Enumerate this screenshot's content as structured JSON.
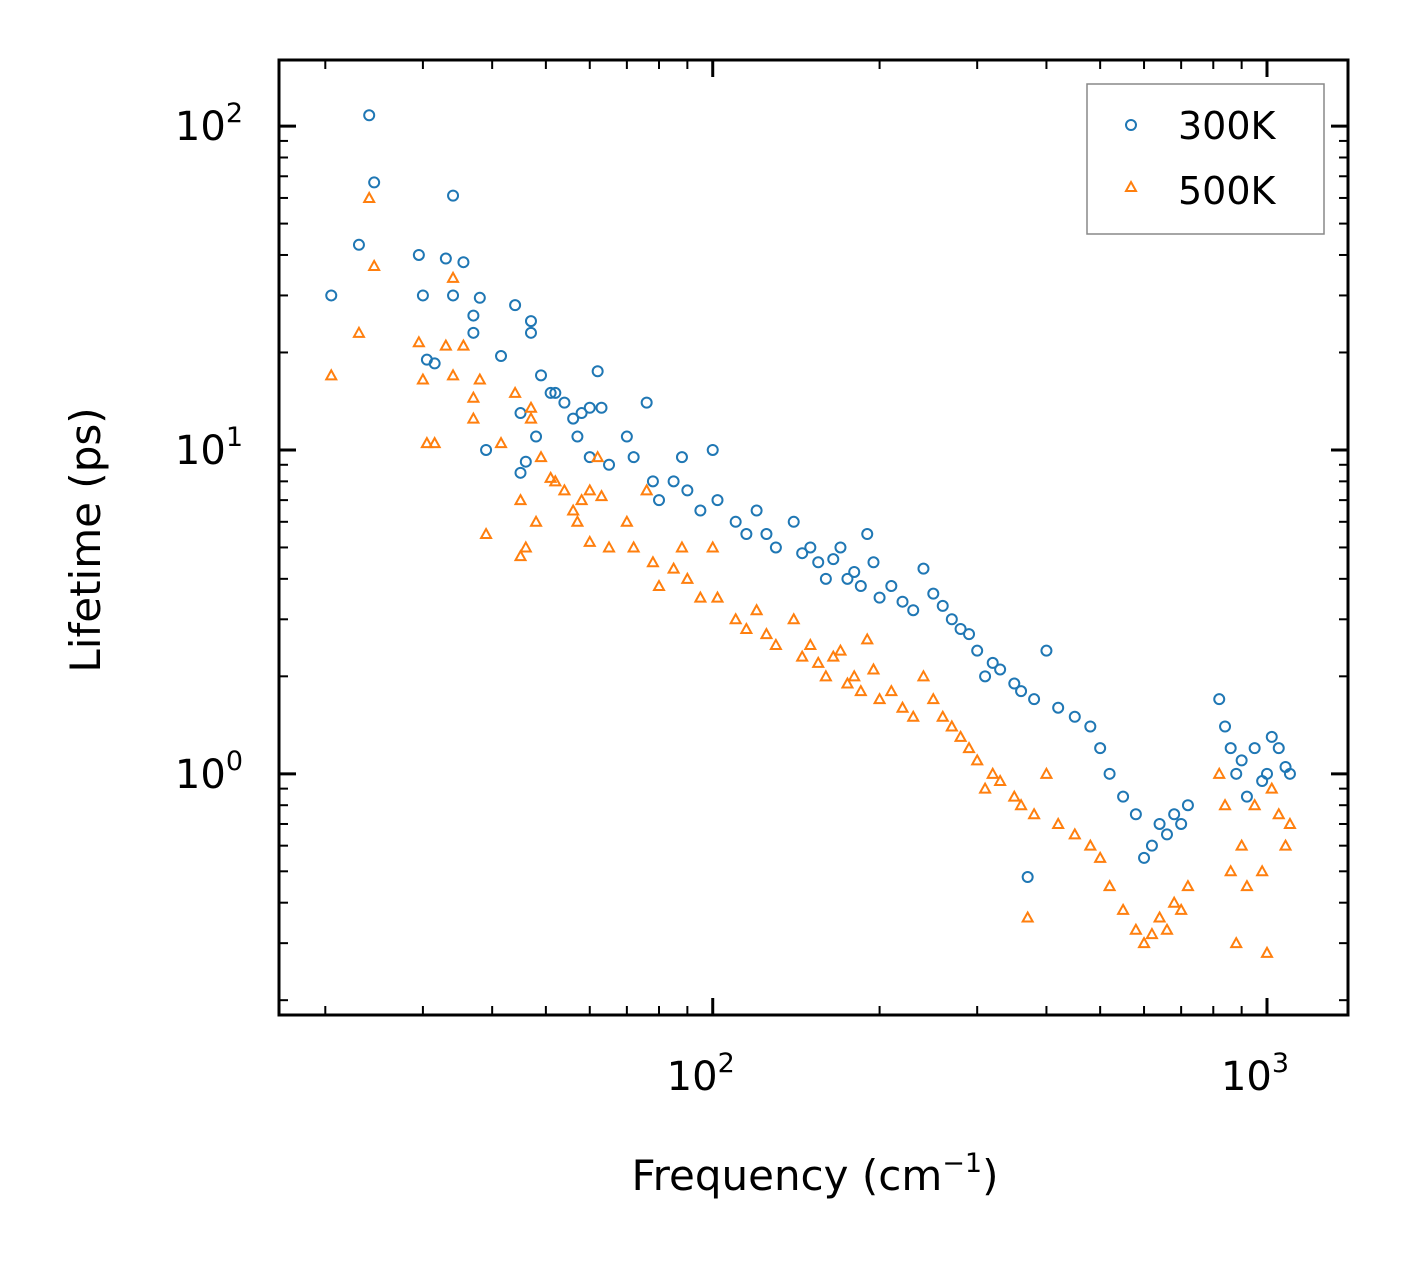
{
  "chart_data": {
    "type": "scatter",
    "title": "",
    "xscale": "log",
    "yscale": "log",
    "xlim": [
      16.5,
      1400
    ],
    "ylim": [
      0.18,
      160
    ],
    "xlabel": "Frequency (cm",
    "xlabel_sup": "−1",
    "xlabel_end": ")",
    "ylabel": "Lifetime (ps)",
    "x_ticks": [
      {
        "value": 100,
        "base": "10",
        "exp": "2"
      },
      {
        "value": 1000,
        "base": "10",
        "exp": "3"
      }
    ],
    "y_ticks": [
      {
        "value": 1,
        "base": "10",
        "exp": "0"
      },
      {
        "value": 10,
        "base": "10",
        "exp": "1"
      },
      {
        "value": 100,
        "base": "10",
        "exp": "2"
      }
    ],
    "legend_position": "top-right",
    "series": [
      {
        "name": "300K",
        "color": "#1f77b4",
        "marker": "circle",
        "points": [
          [
            20.5,
            30
          ],
          [
            23,
            43
          ],
          [
            24,
            108
          ],
          [
            24.5,
            67
          ],
          [
            29.5,
            40
          ],
          [
            30,
            30
          ],
          [
            30.5,
            19
          ],
          [
            31.5,
            18.5
          ],
          [
            33,
            39
          ],
          [
            34,
            61
          ],
          [
            34,
            30
          ],
          [
            35.5,
            38
          ],
          [
            37,
            26
          ],
          [
            37,
            23
          ],
          [
            38,
            29.5
          ],
          [
            39,
            10
          ],
          [
            41.5,
            19.5
          ],
          [
            44,
            28
          ],
          [
            45,
            8.5
          ],
          [
            45,
            13
          ],
          [
            46,
            9.2
          ],
          [
            47,
            25
          ],
          [
            47,
            23
          ],
          [
            48,
            11
          ],
          [
            49,
            17
          ],
          [
            51,
            15
          ],
          [
            52,
            15
          ],
          [
            54,
            14
          ],
          [
            56,
            12.5
          ],
          [
            57,
            11
          ],
          [
            58,
            13
          ],
          [
            60,
            13.5
          ],
          [
            60,
            9.5
          ],
          [
            62,
            17.5
          ],
          [
            63,
            13.5
          ],
          [
            65,
            9
          ],
          [
            70,
            11
          ],
          [
            72,
            9.5
          ],
          [
            76,
            14
          ],
          [
            78,
            8
          ],
          [
            80,
            7
          ],
          [
            85,
            8
          ],
          [
            88,
            9.5
          ],
          [
            90,
            7.5
          ],
          [
            95,
            6.5
          ],
          [
            100,
            10
          ],
          [
            102,
            7
          ],
          [
            110,
            6
          ],
          [
            115,
            5.5
          ],
          [
            120,
            6.5
          ],
          [
            125,
            5.5
          ],
          [
            130,
            5
          ],
          [
            140,
            6
          ],
          [
            145,
            4.8
          ],
          [
            150,
            5
          ],
          [
            155,
            4.5
          ],
          [
            160,
            4
          ],
          [
            165,
            4.6
          ],
          [
            170,
            5
          ],
          [
            175,
            4
          ],
          [
            180,
            4.2
          ],
          [
            185,
            3.8
          ],
          [
            190,
            5.5
          ],
          [
            195,
            4.5
          ],
          [
            200,
            3.5
          ],
          [
            210,
            3.8
          ],
          [
            220,
            3.4
          ],
          [
            230,
            3.2
          ],
          [
            240,
            4.3
          ],
          [
            250,
            3.6
          ],
          [
            260,
            3.3
          ],
          [
            270,
            3.0
          ],
          [
            280,
            2.8
          ],
          [
            290,
            2.7
          ],
          [
            300,
            2.4
          ],
          [
            310,
            2.0
          ],
          [
            320,
            2.2
          ],
          [
            330,
            2.1
          ],
          [
            350,
            1.9
          ],
          [
            360,
            1.8
          ],
          [
            370,
            0.48
          ],
          [
            380,
            1.7
          ],
          [
            400,
            2.4
          ],
          [
            420,
            1.6
          ],
          [
            450,
            1.5
          ],
          [
            480,
            1.4
          ],
          [
            500,
            1.2
          ],
          [
            520,
            1.0
          ],
          [
            550,
            0.85
          ],
          [
            580,
            0.75
          ],
          [
            600,
            0.55
          ],
          [
            620,
            0.6
          ],
          [
            640,
            0.7
          ],
          [
            660,
            0.65
          ],
          [
            680,
            0.75
          ],
          [
            700,
            0.7
          ],
          [
            720,
            0.8
          ],
          [
            820,
            1.7
          ],
          [
            840,
            1.4
          ],
          [
            860,
            1.2
          ],
          [
            880,
            1.0
          ],
          [
            900,
            1.1
          ],
          [
            920,
            0.85
          ],
          [
            950,
            1.2
          ],
          [
            980,
            0.95
          ],
          [
            1000,
            1.0
          ],
          [
            1020,
            1.3
          ],
          [
            1050,
            1.2
          ],
          [
            1080,
            1.05
          ],
          [
            1100,
            1.0
          ]
        ]
      },
      {
        "name": "500K",
        "color": "#ff7f0e",
        "marker": "triangle",
        "points": [
          [
            20.5,
            17
          ],
          [
            23,
            23
          ],
          [
            24,
            60
          ],
          [
            24.5,
            37
          ],
          [
            29.5,
            21.5
          ],
          [
            30,
            16.5
          ],
          [
            30.5,
            10.5
          ],
          [
            31.5,
            10.5
          ],
          [
            33,
            21
          ],
          [
            34,
            34
          ],
          [
            34,
            17
          ],
          [
            35.5,
            21
          ],
          [
            37,
            14.5
          ],
          [
            37,
            12.5
          ],
          [
            38,
            16.5
          ],
          [
            39,
            5.5
          ],
          [
            41.5,
            10.5
          ],
          [
            44,
            15
          ],
          [
            45,
            4.7
          ],
          [
            45,
            7
          ],
          [
            46,
            5
          ],
          [
            47,
            13.5
          ],
          [
            47,
            12.5
          ],
          [
            48,
            6
          ],
          [
            49,
            9.5
          ],
          [
            51,
            8.2
          ],
          [
            52,
            8
          ],
          [
            54,
            7.5
          ],
          [
            56,
            6.5
          ],
          [
            57,
            6
          ],
          [
            58,
            7
          ],
          [
            60,
            7.5
          ],
          [
            60,
            5.2
          ],
          [
            62,
            9.5
          ],
          [
            63,
            7.2
          ],
          [
            65,
            5
          ],
          [
            70,
            6
          ],
          [
            72,
            5
          ],
          [
            76,
            7.5
          ],
          [
            78,
            4.5
          ],
          [
            80,
            3.8
          ],
          [
            85,
            4.3
          ],
          [
            88,
            5
          ],
          [
            90,
            4
          ],
          [
            95,
            3.5
          ],
          [
            100,
            5
          ],
          [
            102,
            3.5
          ],
          [
            110,
            3.0
          ],
          [
            115,
            2.8
          ],
          [
            120,
            3.2
          ],
          [
            125,
            2.7
          ],
          [
            130,
            2.5
          ],
          [
            140,
            3.0
          ],
          [
            145,
            2.3
          ],
          [
            150,
            2.5
          ],
          [
            155,
            2.2
          ],
          [
            160,
            2.0
          ],
          [
            165,
            2.3
          ],
          [
            170,
            2.4
          ],
          [
            175,
            1.9
          ],
          [
            180,
            2.0
          ],
          [
            185,
            1.8
          ],
          [
            190,
            2.6
          ],
          [
            195,
            2.1
          ],
          [
            200,
            1.7
          ],
          [
            210,
            1.8
          ],
          [
            220,
            1.6
          ],
          [
            230,
            1.5
          ],
          [
            240,
            2.0
          ],
          [
            250,
            1.7
          ],
          [
            260,
            1.5
          ],
          [
            270,
            1.4
          ],
          [
            280,
            1.3
          ],
          [
            290,
            1.2
          ],
          [
            300,
            1.1
          ],
          [
            310,
            0.9
          ],
          [
            320,
            1.0
          ],
          [
            330,
            0.95
          ],
          [
            350,
            0.85
          ],
          [
            360,
            0.8
          ],
          [
            370,
            0.36
          ],
          [
            380,
            0.75
          ],
          [
            400,
            1.0
          ],
          [
            420,
            0.7
          ],
          [
            450,
            0.65
          ],
          [
            480,
            0.6
          ],
          [
            500,
            0.55
          ],
          [
            520,
            0.45
          ],
          [
            550,
            0.38
          ],
          [
            580,
            0.33
          ],
          [
            600,
            0.3
          ],
          [
            620,
            0.32
          ],
          [
            640,
            0.36
          ],
          [
            660,
            0.33
          ],
          [
            680,
            0.4
          ],
          [
            700,
            0.38
          ],
          [
            720,
            0.45
          ],
          [
            820,
            1.0
          ],
          [
            840,
            0.8
          ],
          [
            860,
            0.5
          ],
          [
            880,
            0.3
          ],
          [
            900,
            0.6
          ],
          [
            920,
            0.45
          ],
          [
            950,
            0.8
          ],
          [
            980,
            0.5
          ],
          [
            1000,
            0.28
          ],
          [
            1020,
            0.9
          ],
          [
            1050,
            0.75
          ],
          [
            1080,
            0.6
          ],
          [
            1100,
            0.7
          ]
        ]
      }
    ]
  }
}
